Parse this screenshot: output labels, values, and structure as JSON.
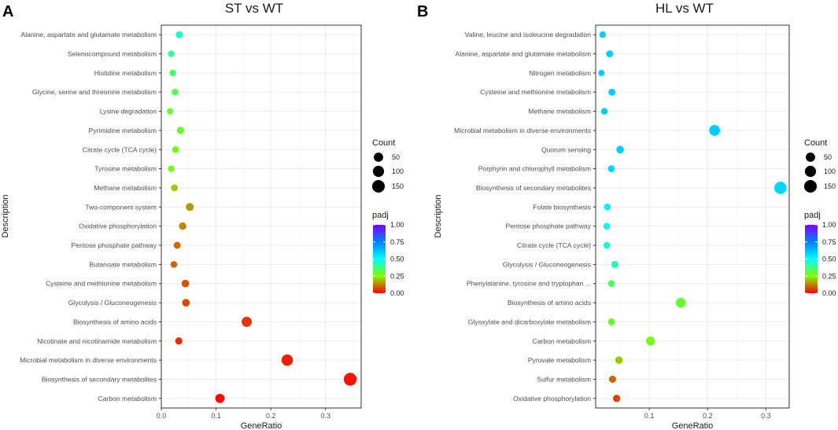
{
  "chart_data": [
    {
      "type": "scatter",
      "panel_letter": "A",
      "title": "ST vs WT",
      "xlabel": "GeneRatio",
      "ylabel": "Description",
      "xlim": [
        0,
        0.365
      ],
      "xticks": [
        0.0,
        0.1,
        0.2,
        0.3
      ],
      "xtick_labels": [
        "0.0",
        "0.1",
        "0.2",
        "0.3"
      ],
      "categories": [
        "Alanine, aspartate and glutamate metabolism",
        "Selenocompound metabolism",
        "Histidine metabolism",
        "Glycine, serine and threonine metabolism",
        "Lysine degradation",
        "Pyrimidine metabolism",
        "Citrate cycle (TCA cycle)",
        "Tyrosine metabolism",
        "Methane metabolism",
        "Two-component system",
        "Oxidative phosphorylation",
        "Pentose phosphate pathway",
        "Butanoate metabolism",
        "Cysteine and methionine metabolism",
        "Glycolysis / Gluconeogenesis",
        "Biosynthesis of amino acids",
        "Nicotinate and nicotinamide metabolism",
        "Microbial metabolism in diverse environments",
        "Biosynthesis of secondary metabolites",
        "Carbon metabolism"
      ],
      "gene_ratio": [
        0.033,
        0.018,
        0.021,
        0.025,
        0.016,
        0.035,
        0.026,
        0.018,
        0.024,
        0.052,
        0.039,
        0.029,
        0.023,
        0.044,
        0.045,
        0.156,
        0.032,
        0.23,
        0.345,
        0.107
      ],
      "count": [
        15,
        8,
        9,
        11,
        7,
        16,
        12,
        8,
        11,
        24,
        18,
        13,
        10,
        20,
        21,
        72,
        15,
        106,
        159,
        49
      ],
      "padj": [
        0.45,
        0.4,
        0.35,
        0.33,
        0.3,
        0.3,
        0.28,
        0.27,
        0.2,
        0.15,
        0.13,
        0.11,
        0.1,
        0.08,
        0.07,
        0.05,
        0.04,
        0.03,
        0.02,
        0.01
      ]
    },
    {
      "type": "scatter",
      "panel_letter": "B",
      "title": "HL vs WT",
      "xlabel": "GeneRatio",
      "ylabel": "Description",
      "xlim": [
        0.008,
        0.34
      ],
      "xticks": [
        0.1,
        0.2,
        0.3
      ],
      "xtick_labels": [
        "0.1",
        "0.2",
        "0.3"
      ],
      "categories": [
        "Valine, leucine and isoleucine degradation",
        "Alanine, aspartate and glutamate metabolism",
        "Nitrogen metabolism",
        "Cysteine and methionine metabolism",
        "Methane metabolism",
        "Microbial metabolism in diverse environments",
        "Quorum sensing",
        "Porphyrin and chlorophyll metabolism",
        "Biosynthesis of secondary metabolites",
        "Folate biosynthesis",
        "Pentose phosphate pathway",
        "Citrate cycle (TCA cycle)",
        "Glycolysis / Gluconeogenesis",
        "Phenylalanine, tyrosine and tryptophan ...",
        "Biosynthesis of amino acids",
        "Glyoxylate and dicarboxylate metabolism",
        "Carbon metabolism",
        "Pyruvate metabolism",
        "Sulfur metabolism",
        "Oxidative phosphorylation"
      ],
      "gene_ratio": [
        0.02,
        0.032,
        0.018,
        0.036,
        0.023,
        0.212,
        0.05,
        0.035,
        0.325,
        0.028,
        0.027,
        0.027,
        0.041,
        0.035,
        0.154,
        0.035,
        0.102,
        0.048,
        0.037,
        0.044
      ],
      "count": [
        8,
        12,
        6,
        13,
        9,
        90,
        20,
        13,
        140,
        11,
        10,
        10,
        16,
        13,
        65,
        13,
        44,
        19,
        14,
        17
      ],
      "padj": [
        0.6,
        0.6,
        0.6,
        0.6,
        0.6,
        0.6,
        0.6,
        0.58,
        0.58,
        0.52,
        0.49,
        0.46,
        0.42,
        0.34,
        0.3,
        0.3,
        0.27,
        0.2,
        0.1,
        0.07
      ]
    }
  ],
  "legend": {
    "count_title": "Count",
    "count_values": [
      50,
      100,
      150
    ],
    "count_labels": [
      "50",
      "100",
      "150"
    ],
    "padj_title": "padj",
    "padj_labels": [
      "1.00",
      "0.75",
      "0.50",
      "0.25",
      "0.00"
    ],
    "colors": {
      "padj_0": "#ff0000",
      "padj_025": "#80ff00",
      "padj_050": "#00ffff",
      "padj_075": "#0080ff",
      "padj_100": "#8000ff"
    }
  }
}
